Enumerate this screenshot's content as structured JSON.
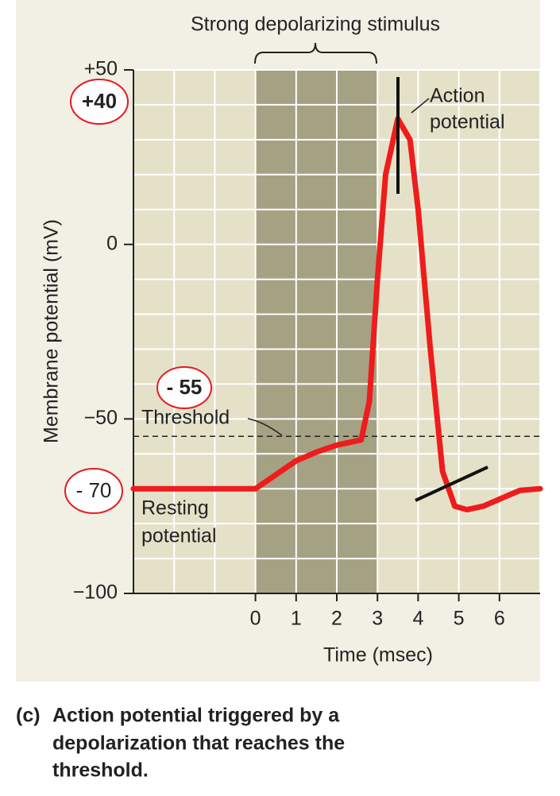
{
  "chart_data": {
    "type": "line",
    "x_label": "Time (msec)",
    "y_label": "Membrane potential (mV)",
    "xlim": [
      -3,
      7
    ],
    "xticks": [
      0,
      1,
      2,
      3,
      4,
      5,
      6
    ],
    "ylim": [
      -100,
      50
    ],
    "yticks": [
      {
        "value": -100,
        "label": "−100"
      },
      {
        "value": -50,
        "label": "−50"
      },
      0,
      {
        "value": 50,
        "label": "+50"
      }
    ],
    "xgrid": [
      -3,
      -2,
      -1,
      0,
      1,
      2,
      3,
      4,
      5,
      6,
      7
    ],
    "ygrid": [
      -100,
      -90,
      -80,
      -70,
      -60,
      -50,
      -40,
      -30,
      -20,
      -10,
      0,
      10,
      20,
      30,
      40,
      50
    ],
    "grid": true,
    "x": [
      -3,
      0,
      0.5,
      1,
      1.5,
      2,
      2.6,
      2.8,
      3,
      3.2,
      3.5,
      3.8,
      4,
      4.3,
      4.6,
      4.9,
      5.2,
      5.6,
      6,
      6.5,
      7
    ],
    "series": [
      {
        "color": "#ee1c1c",
        "values": [
          -70,
          -70,
          -66,
          -62,
          -59.5,
          -57.5,
          -56,
          -45,
          -10,
          20,
          36,
          30,
          10,
          -30,
          -65,
          -75,
          -76,
          -75,
          -73,
          -70.5,
          -70
        ]
      }
    ],
    "stimulus": {
      "label": "Strong depolarizing stimulus",
      "start": 0,
      "end": 3,
      "color": "#a5a183"
    },
    "threshold": {
      "label": "Threshold",
      "value": -55
    },
    "resting_label": [
      "Resting",
      "potential"
    ],
    "peak_label": [
      "Action",
      "potential"
    ],
    "annotations": [
      {
        "label": "+40",
        "value": 40
      },
      {
        "label": "- 55",
        "value": -55
      },
      {
        "label": "- 70",
        "value": -70
      }
    ],
    "caption": {
      "label": "(c)",
      "lines": [
        "Action potential triggered by a",
        "depolarization that reaches the",
        "threshold."
      ]
    }
  }
}
